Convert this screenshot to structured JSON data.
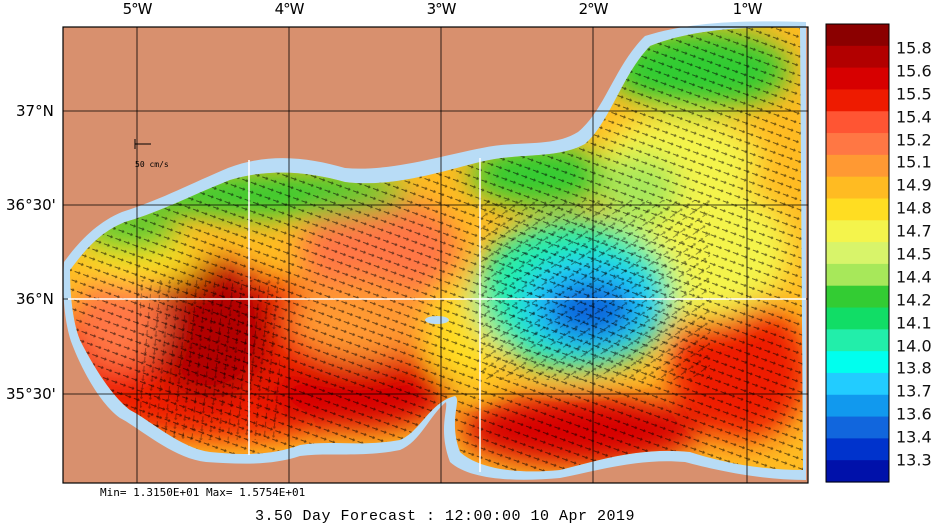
{
  "map": {
    "lon_labels": [
      "5°W",
      "4°W",
      "3°W",
      "2°W",
      "1°W"
    ],
    "lat_labels": [
      "37°N",
      "36°30'",
      "36°N",
      "35°30'"
    ],
    "scale_label": "50 cm/s",
    "min_max": "Min= 1.3150E+01  Max= 1.5754E+01",
    "forecast": "3.50 Day Forecast : 12:00:00  10 Apr 2019"
  },
  "colorbar": {
    "labels": [
      "15.8",
      "15.6",
      "15.5",
      "15.4",
      "15.2",
      "15.1",
      "14.9",
      "14.8",
      "14.7",
      "14.5",
      "14.4",
      "14.2",
      "14.1",
      "14.0",
      "13.8",
      "13.7",
      "13.6",
      "13.4",
      "13.3"
    ],
    "colors": [
      "#8b0000",
      "#b20000",
      "#d70000",
      "#ee1b00",
      "#ff5533",
      "#ff7744",
      "#ff9933",
      "#ffbb22",
      "#ffdd22",
      "#f4f44c",
      "#d8f46a",
      "#a7e85a",
      "#33cc33",
      "#11dd66",
      "#22eeaa",
      "#00ffee",
      "#22ccff",
      "#1199ee",
      "#1166dd",
      "#0033cc",
      "#0011aa"
    ]
  },
  "style": {
    "land": "#d8906e",
    "shelf": "#b8dcf6",
    "grid": "#000000"
  }
}
